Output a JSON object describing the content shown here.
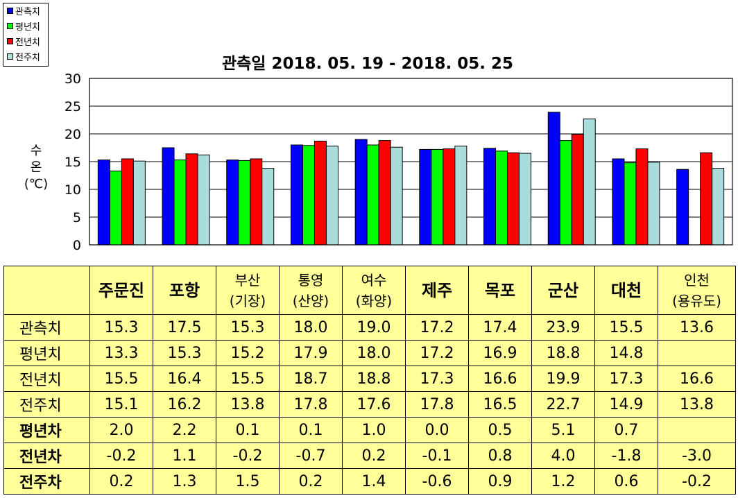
{
  "chart_data": {
    "type": "bar",
    "title": "관측일 2018. 05. 19 - 2018. 05. 25",
    "ylabel": "수 온 (℃)",
    "ylim": [
      0,
      30
    ],
    "yticks": [
      "0",
      "5",
      "10",
      "15",
      "20",
      "25",
      "30"
    ],
    "grid": true,
    "legend_position": "top-left",
    "categories": [
      "주문진",
      "포항",
      "부산(기장)",
      "통영(산양)",
      "여수(화양)",
      "제주",
      "목포",
      "군산",
      "대천",
      "인천(용유도)"
    ],
    "series": [
      {
        "name": "관측치",
        "color": "#0000ff",
        "values": [
          15.3,
          17.5,
          15.3,
          18.0,
          19.0,
          17.2,
          17.4,
          23.9,
          15.5,
          13.6
        ]
      },
      {
        "name": "평년치",
        "color": "#00ff00",
        "values": [
          13.3,
          15.3,
          15.2,
          17.9,
          18.0,
          17.2,
          16.9,
          18.8,
          14.8,
          null
        ]
      },
      {
        "name": "전년치",
        "color": "#ff0000",
        "values": [
          15.5,
          16.4,
          15.5,
          18.7,
          18.8,
          17.3,
          16.6,
          19.9,
          17.3,
          16.6
        ]
      },
      {
        "name": "전주치",
        "color": "#aadcdc",
        "values": [
          15.1,
          16.2,
          13.8,
          17.8,
          17.6,
          17.8,
          16.5,
          22.7,
          14.9,
          13.8
        ]
      }
    ]
  },
  "table": {
    "headers": [
      {
        "lines": [
          "주문진"
        ],
        "bold": true
      },
      {
        "lines": [
          "포항"
        ],
        "bold": true
      },
      {
        "lines": [
          "부산",
          "(기장)"
        ],
        "bold": false
      },
      {
        "lines": [
          "통영",
          "(산양)"
        ],
        "bold": false
      },
      {
        "lines": [
          "여수",
          "(화양)"
        ],
        "bold": false
      },
      {
        "lines": [
          "제주"
        ],
        "bold": true
      },
      {
        "lines": [
          "목포"
        ],
        "bold": true
      },
      {
        "lines": [
          "군산"
        ],
        "bold": true
      },
      {
        "lines": [
          "대천"
        ],
        "bold": true
      },
      {
        "lines": [
          "인천",
          "(용유도)"
        ],
        "bold": false
      }
    ],
    "rows": [
      {
        "label": "관측치",
        "kind": "value",
        "cells": [
          "15.3",
          "17.5",
          "15.3",
          "18.0",
          "19.0",
          "17.2",
          "17.4",
          "23.9",
          "15.5",
          "13.6"
        ]
      },
      {
        "label": "평년치",
        "kind": "value",
        "cells": [
          "13.3",
          "15.3",
          "15.2",
          "17.9",
          "18.0",
          "17.2",
          "16.9",
          "18.8",
          "14.8",
          ""
        ]
      },
      {
        "label": "전년치",
        "kind": "value",
        "cells": [
          "15.5",
          "16.4",
          "15.5",
          "18.7",
          "18.8",
          "17.3",
          "16.6",
          "19.9",
          "17.3",
          "16.6"
        ]
      },
      {
        "label": "전주치",
        "kind": "value",
        "cells": [
          "15.1",
          "16.2",
          "13.8",
          "17.8",
          "17.6",
          "17.8",
          "16.5",
          "22.7",
          "14.9",
          "13.8"
        ]
      },
      {
        "label": "평년차",
        "kind": "diff",
        "cells": [
          "2.0",
          "2.2",
          "0.1",
          "0.1",
          "1.0",
          "0.0",
          "0.5",
          "5.1",
          "0.7",
          ""
        ]
      },
      {
        "label": "전년차",
        "kind": "diff",
        "cells": [
          "-0.2",
          "1.1",
          "-0.2",
          "-0.7",
          "0.2",
          "-0.1",
          "0.8",
          "4.0",
          "-1.8",
          "-3.0"
        ]
      },
      {
        "label": "전주차",
        "kind": "diff",
        "cells": [
          "0.2",
          "1.3",
          "1.5",
          "0.2",
          "1.4",
          "-0.6",
          "0.9",
          "1.2",
          "0.6",
          "-0.2"
        ]
      }
    ]
  }
}
